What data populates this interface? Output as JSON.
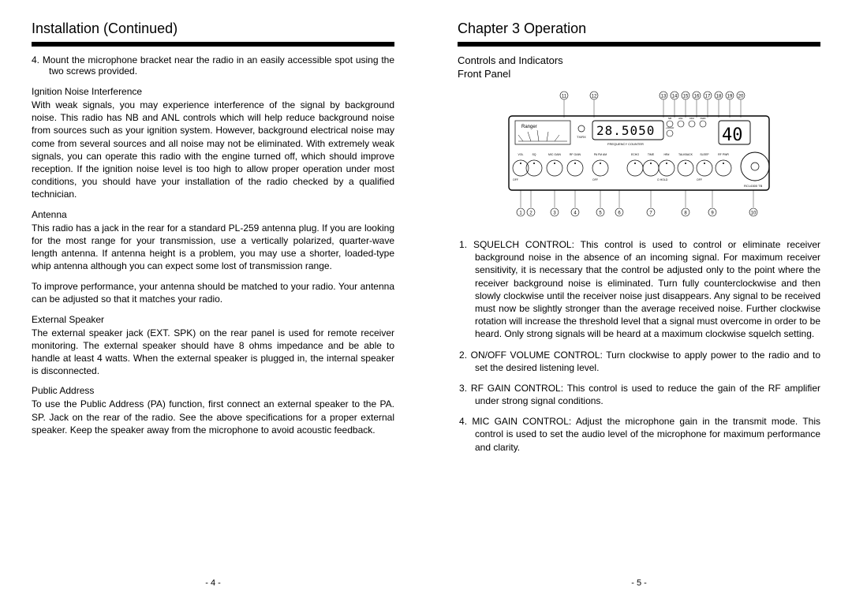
{
  "left": {
    "title": "Installation (Continued)",
    "item4": "Mount the microphone bracket near the radio in an easily accessible spot using the two screws provided.",
    "ignition_h": "Ignition Noise Interference",
    "ignition_p": "With weak signals, you may experience interference of the signal by background noise. This radio has NB and ANL controls which will help reduce background noise from sources such as your ignition system. However, background electrical noise may come from several sources and all noise may not be eliminated. With extremely weak signals, you can operate this radio with the engine turned off, which should improve reception. If the ignition noise level is too high to allow proper operation under most conditions, you should have your installation of the radio checked by a qualified technician.",
    "antenna_h": "Antenna",
    "antenna_p1": "This radio has a jack in the rear for a standard PL-259 antenna plug. If you are looking for the most range for your transmission, use a vertically polarized, quarter-wave length antenna. If antenna height is a problem, you may use a shorter, loaded-type whip antenna although you can expect some lost of transmission range.",
    "antenna_p2": "To improve performance, your antenna should be matched to your radio. Your antenna can be adjusted so that it matches your radio.",
    "ext_h": "External Speaker",
    "ext_p": "The external speaker jack (EXT. SPK) on the rear panel is used for remote receiver monitoring. The external speaker should have 8 ohms impedance and be able to handle at least 4 watts. When the external speaker is plugged in, the internal speaker is disconnected.",
    "pa_h": "Public Address",
    "pa_p": "To use the Public Address (PA) function, first connect an external speaker to the PA. SP. Jack on the rear of the radio. See the above specifications for a proper external speaker. Keep the speaker away from the microphone to avoid acoustic feedback.",
    "pagenum": "- 4 -"
  },
  "right": {
    "title": "Chapter 3  Operation",
    "sub1": "Controls and Indicators",
    "sub2": "Front Panel",
    "diagram": {
      "brand": "Ranger",
      "freq": "28.5050",
      "ch": "40",
      "freq_label": "FREQUENCY COUNTER",
      "model": "RCI-6300 TB",
      "top_nums": [
        "11",
        "12",
        "13",
        "14",
        "15",
        "16",
        "17",
        "18",
        "19",
        "20"
      ],
      "bot_nums": [
        "1",
        "2",
        "3",
        "4",
        "5",
        "6",
        "7",
        "8",
        "9",
        "10"
      ],
      "knob_rows": [
        [
          "VOL",
          "SQ",
          "MIC GAIN",
          "RF GAIN",
          "PA  FM  AM",
          "ECHO",
          "TIME",
          "HR#",
          "TALKBACK",
          "SLEEP",
          "RF PWR"
        ]
      ],
      "small_btns": [
        "TX/RX",
        "NB",
        "ANL",
        "DIM",
        "SWR",
        "+10KHz"
      ]
    },
    "controls": [
      {
        "name": "SQUELCH CONTROL:",
        "text": " This control is used to control or eliminate receiver background noise in the absence of an incoming signal. For maximum receiver sensitivity, it is necessary that the control be adjusted only to the point where the receiver background noise is eliminated. Turn fully counterclockwise and then slowly clockwise until the receiver noise just disappears. Any signal to be received must now be slightly stronger than the average received noise. Further clockwise rotation will increase the threshold level that a signal must overcome in order to be heard. Only strong signals will be heard at a maximum clockwise squelch setting."
      },
      {
        "name": "ON/OFF VOLUME CONTROL:",
        "text": " Turn clockwise to apply power to the radio and to set the desired listening level."
      },
      {
        "name": "RF GAIN CONTROL:",
        "text": " This control is used to reduce the gain of the RF amplifier under strong signal conditions."
      },
      {
        "name": "MIC GAIN CONTROL:",
        "text": " Adjust the microphone gain in the transmit mode. This control is used to set the audio level of the microphone for maximum performance and clarity."
      }
    ],
    "pagenum": "- 5 -"
  }
}
